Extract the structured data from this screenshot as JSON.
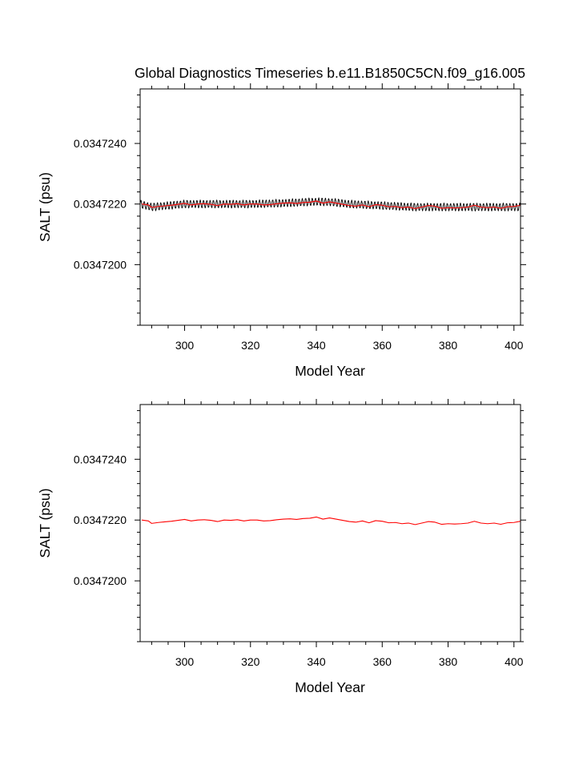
{
  "figure_title": "Global Diagnostics Timeseries b.e11.B1850C5CN.f09_g16.005",
  "colors": {
    "monthly": "#000000",
    "annual": "#ff0000",
    "axis": "#000000"
  },
  "chart_data": [
    {
      "type": "line",
      "name": "top-panel",
      "title": "Global Diagnostics Timeseries b.e11.B1850C5CN.f09_g16.005",
      "xlabel": "Model Year",
      "ylabel": "SALT (psu)",
      "xlim": [
        286.5,
        402
      ],
      "ylim": [
        0.034718,
        0.0347258
      ],
      "xticks": [
        300,
        320,
        340,
        360,
        380,
        400
      ],
      "xtick_labels": [
        "300",
        "320",
        "340",
        "360",
        "380",
        "400"
      ],
      "yticks": [
        0.03472,
        0.034722,
        0.034724
      ],
      "ytick_labels": [
        "0.0347200",
        "0.0347220",
        "0.0347240"
      ],
      "series": [
        {
          "name": "monthly",
          "color": "#000000",
          "kind": "monthly-oscillation",
          "x_start": 286.5,
          "x_end": 402,
          "baseline_x": [
            286.5,
            290,
            300,
            310,
            320,
            330,
            340,
            345,
            350,
            360,
            370,
            380,
            390,
            400,
            402
          ],
          "baseline_y": [
            0.034722,
            0.0347219,
            0.034722,
            0.034722,
            0.034722,
            0.03472203,
            0.03472208,
            0.03472206,
            0.034722,
            0.03472195,
            0.0347219,
            0.0347219,
            0.0347219,
            0.0347219,
            0.0347219
          ],
          "amplitude": 1.2e-07
        },
        {
          "name": "annual",
          "color": "#ff0000",
          "x": [
            287,
            289,
            290,
            292,
            294,
            296,
            298,
            300,
            302,
            304,
            306,
            308,
            310,
            312,
            314,
            316,
            318,
            320,
            322,
            324,
            326,
            328,
            330,
            332,
            334,
            336,
            338,
            340,
            342,
            344,
            346,
            348,
            350,
            352,
            354,
            356,
            358,
            360,
            362,
            364,
            366,
            368,
            370,
            372,
            374,
            376,
            378,
            380,
            382,
            384,
            386,
            388,
            390,
            392,
            394,
            396,
            398,
            400,
            402
          ],
          "y": [
            0.034722,
            0.03472197,
            0.03472189,
            0.03472192,
            0.03472194,
            0.03472196,
            0.03472199,
            0.03472202,
            0.03472197,
            0.034722,
            0.03472201,
            0.03472199,
            0.03472195,
            0.034722,
            0.03472199,
            0.03472201,
            0.03472197,
            0.034722,
            0.034722,
            0.03472197,
            0.03472198,
            0.03472201,
            0.03472203,
            0.03472204,
            0.03472202,
            0.03472205,
            0.03472206,
            0.0347221,
            0.03472203,
            0.03472207,
            0.03472203,
            0.03472199,
            0.03472195,
            0.03472193,
            0.03472197,
            0.03472191,
            0.03472198,
            0.03472196,
            0.03472191,
            0.03472192,
            0.03472188,
            0.0347219,
            0.03472185,
            0.0347219,
            0.03472195,
            0.03472193,
            0.03472186,
            0.03472188,
            0.03472187,
            0.03472188,
            0.0347219,
            0.03472196,
            0.0347219,
            0.03472188,
            0.0347219,
            0.03472186,
            0.03472191,
            0.03472192,
            0.03472196
          ]
        }
      ]
    },
    {
      "type": "line",
      "name": "bottom-panel",
      "title": "",
      "xlabel": "Model Year",
      "ylabel": "SALT (psu)",
      "xlim": [
        286.5,
        402
      ],
      "ylim": [
        0.034718,
        0.0347258
      ],
      "xticks": [
        300,
        320,
        340,
        360,
        380,
        400
      ],
      "xtick_labels": [
        "300",
        "320",
        "340",
        "360",
        "380",
        "400"
      ],
      "yticks": [
        0.03472,
        0.034722,
        0.034724
      ],
      "ytick_labels": [
        "0.0347200",
        "0.0347220",
        "0.0347240"
      ],
      "series": [
        {
          "name": "annual",
          "color": "#ff0000",
          "x": [
            287,
            289,
            290,
            292,
            294,
            296,
            298,
            300,
            302,
            304,
            306,
            308,
            310,
            312,
            314,
            316,
            318,
            320,
            322,
            324,
            326,
            328,
            330,
            332,
            334,
            336,
            338,
            340,
            342,
            344,
            346,
            348,
            350,
            352,
            354,
            356,
            358,
            360,
            362,
            364,
            366,
            368,
            370,
            372,
            374,
            376,
            378,
            380,
            382,
            384,
            386,
            388,
            390,
            392,
            394,
            396,
            398,
            400,
            402
          ],
          "y": [
            0.034722,
            0.03472197,
            0.03472189,
            0.03472192,
            0.03472194,
            0.03472196,
            0.03472199,
            0.03472202,
            0.03472197,
            0.034722,
            0.03472201,
            0.03472199,
            0.03472195,
            0.034722,
            0.03472199,
            0.03472201,
            0.03472197,
            0.034722,
            0.034722,
            0.03472197,
            0.03472198,
            0.03472201,
            0.03472203,
            0.03472204,
            0.03472202,
            0.03472205,
            0.03472206,
            0.0347221,
            0.03472203,
            0.03472207,
            0.03472203,
            0.03472199,
            0.03472195,
            0.03472193,
            0.03472197,
            0.03472191,
            0.03472198,
            0.03472196,
            0.03472191,
            0.03472192,
            0.03472188,
            0.0347219,
            0.03472185,
            0.0347219,
            0.03472195,
            0.03472193,
            0.03472186,
            0.03472188,
            0.03472187,
            0.03472188,
            0.0347219,
            0.03472196,
            0.0347219,
            0.03472188,
            0.0347219,
            0.03472186,
            0.03472191,
            0.03472192,
            0.03472196
          ]
        }
      ]
    }
  ]
}
